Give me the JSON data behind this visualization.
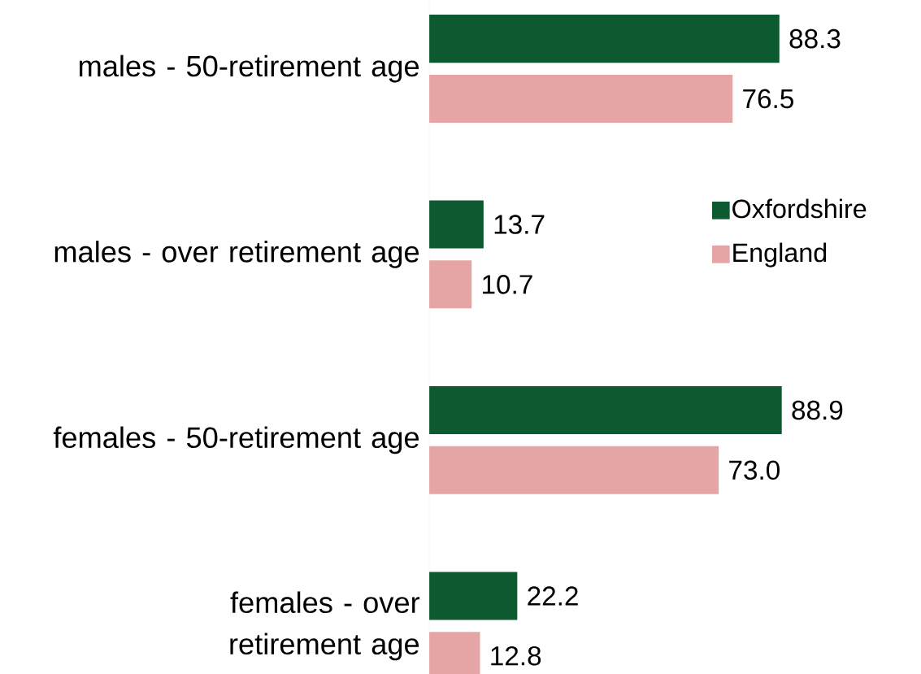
{
  "chart_data": {
    "type": "bar",
    "orientation": "horizontal",
    "categories": [
      "males - 50-retirement age",
      "males - over retirement age",
      "females - 50-retirement age",
      "females - over retirement age"
    ],
    "series": [
      {
        "name": "Oxfordshire",
        "color": "#0e5a30",
        "values": [
          88.3,
          13.7,
          88.9,
          22.2
        ],
        "value_labels": [
          "88.3",
          "13.7",
          "88.9",
          "22.2"
        ]
      },
      {
        "name": "England",
        "color": "#e6a5a5",
        "values": [
          76.5,
          10.7,
          73.0,
          12.8
        ],
        "value_labels": [
          "76.5",
          "10.7",
          "73.0",
          "12.8"
        ]
      }
    ],
    "legend": "right"
  }
}
